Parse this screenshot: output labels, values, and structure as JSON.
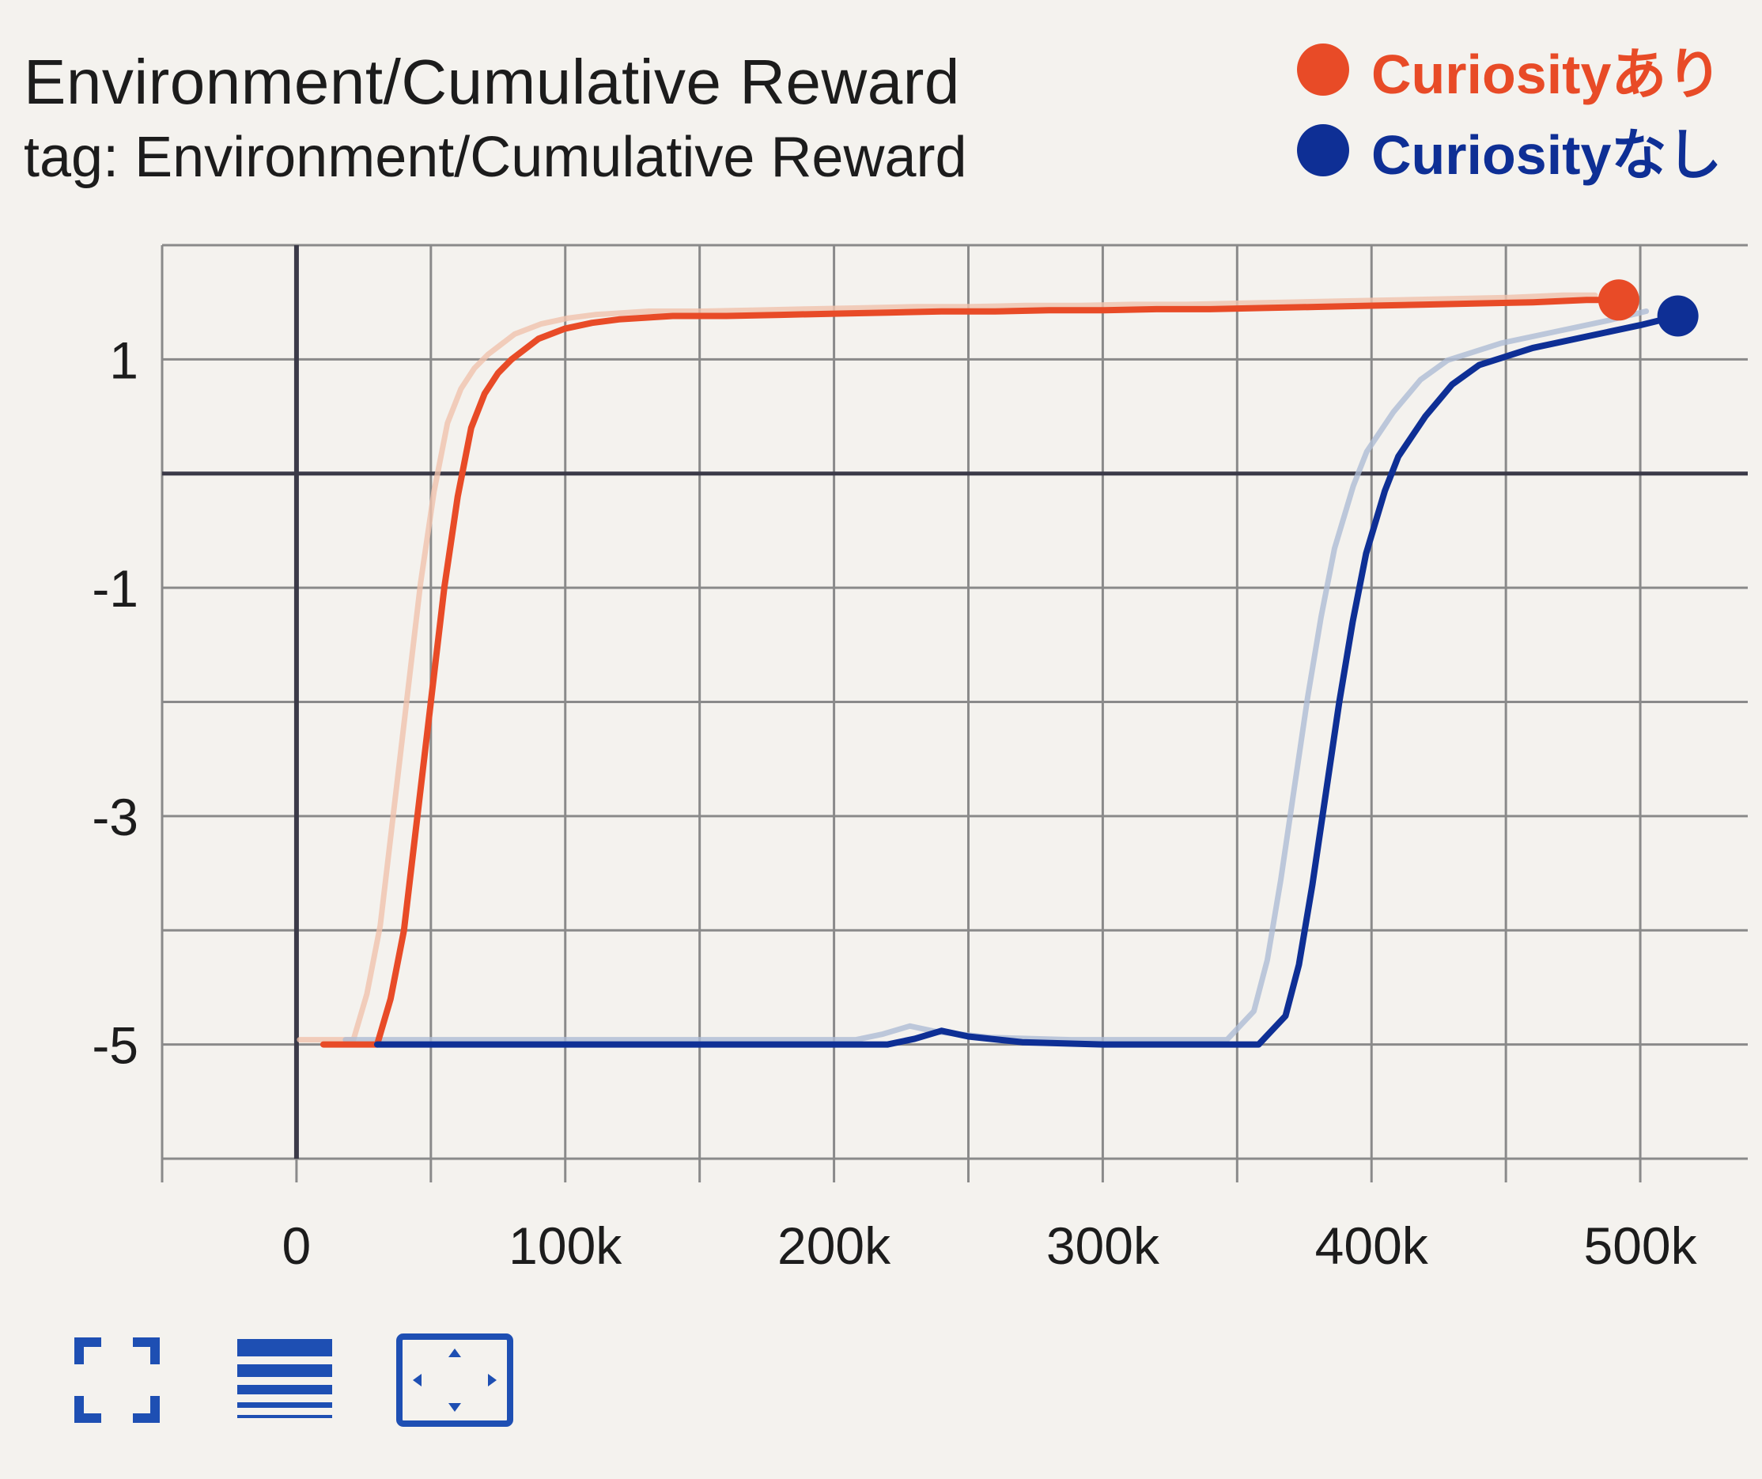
{
  "header": {
    "title": "Environment/Cumulative Reward",
    "subtitle": "tag: Environment/Cumulative Reward"
  },
  "legend": [
    {
      "label": "Curiosityあり",
      "color": "#e84b27"
    },
    {
      "label": "Curiosityなし",
      "color": "#0e2f95"
    }
  ],
  "toolbar": [
    {
      "icon": "fit-domain-icon"
    },
    {
      "icon": "log-scale-icon"
    },
    {
      "icon": "expand-chart-icon"
    }
  ],
  "chart_data": {
    "type": "line",
    "title": "Environment/Cumulative Reward",
    "xlabel": "",
    "ylabel": "",
    "xlim": [
      -50000,
      540000
    ],
    "ylim": [
      -6,
      2
    ],
    "x_ticks": [
      0,
      100000,
      200000,
      300000,
      400000,
      500000
    ],
    "x_tick_labels": [
      "0",
      "100k",
      "200k",
      "300k",
      "400k",
      "500k"
    ],
    "y_ticks": [
      1,
      -1,
      -3,
      -5
    ],
    "y_tick_labels": [
      "1",
      "-1",
      "-3",
      "-5"
    ],
    "grid": true,
    "legend_position": "top-right",
    "series": [
      {
        "name": "Curiosityあり",
        "color": "#e84b27",
        "raw_color": "#f0c2ad",
        "x": [
          10000,
          30000,
          35000,
          40000,
          45000,
          50000,
          55000,
          60000,
          65000,
          70000,
          75000,
          80000,
          90000,
          100000,
          110000,
          120000,
          140000,
          160000,
          180000,
          200000,
          220000,
          240000,
          260000,
          280000,
          300000,
          320000,
          340000,
          360000,
          380000,
          400000,
          420000,
          440000,
          460000,
          480000,
          492000
        ],
        "y": [
          -5.0,
          -5.0,
          -4.6,
          -4.0,
          -3.0,
          -2.0,
          -1.0,
          -0.2,
          0.4,
          0.7,
          0.88,
          1.0,
          1.18,
          1.27,
          1.32,
          1.35,
          1.38,
          1.38,
          1.39,
          1.4,
          1.41,
          1.42,
          1.42,
          1.43,
          1.43,
          1.44,
          1.44,
          1.45,
          1.46,
          1.47,
          1.48,
          1.49,
          1.5,
          1.52,
          1.52
        ]
      },
      {
        "name": "Curiosityなし",
        "color": "#0e2f95",
        "raw_color": "#aebbd4",
        "x": [
          30000,
          100000,
          200000,
          220000,
          230000,
          240000,
          250000,
          270000,
          300000,
          340000,
          358000,
          368000,
          373000,
          378000,
          383000,
          388000,
          393000,
          398000,
          405000,
          410000,
          420000,
          430000,
          440000,
          460000,
          480000,
          500000,
          514000
        ],
        "y": [
          -5.0,
          -5.0,
          -5.0,
          -5.0,
          -4.95,
          -4.88,
          -4.93,
          -4.98,
          -5.0,
          -5.0,
          -5.0,
          -4.75,
          -4.3,
          -3.6,
          -2.8,
          -2.0,
          -1.3,
          -0.7,
          -0.15,
          0.15,
          0.5,
          0.78,
          0.95,
          1.1,
          1.2,
          1.3,
          1.38
        ]
      }
    ]
  }
}
